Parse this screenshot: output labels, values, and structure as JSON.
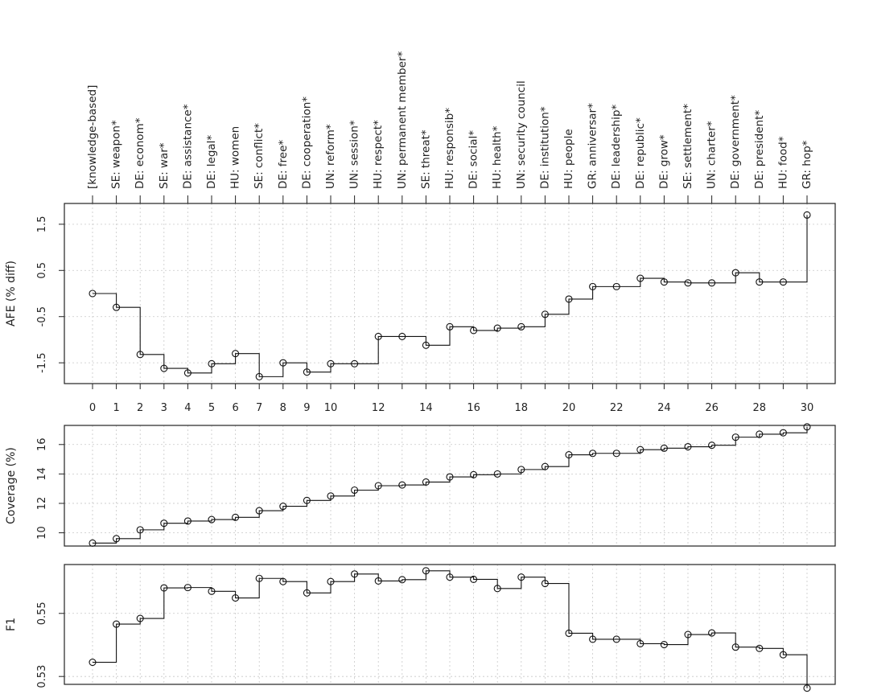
{
  "chart_data": {
    "type": "line",
    "step": true,
    "x": [
      0,
      1,
      2,
      3,
      4,
      5,
      6,
      7,
      8,
      9,
      10,
      11,
      12,
      13,
      14,
      15,
      16,
      17,
      18,
      19,
      20,
      21,
      22,
      23,
      24,
      25,
      26,
      27,
      28,
      29,
      30
    ],
    "x_tick_labels": [
      "0",
      "1",
      "2",
      "3",
      "4",
      "5",
      "6",
      "7",
      "8",
      "9",
      "10",
      "12",
      "14",
      "16",
      "18",
      "20",
      "22",
      "24",
      "26",
      "28",
      "30"
    ],
    "x_tick_values": [
      0,
      1,
      2,
      3,
      4,
      5,
      6,
      7,
      8,
      9,
      10,
      12,
      14,
      16,
      18,
      20,
      22,
      24,
      26,
      28,
      30
    ],
    "features": [
      "[knowledge-based]",
      "SE: weapon*",
      "DE: econom*",
      "SE: war*",
      "DE: assistance*",
      "DE: legal*",
      "HU: women",
      "SE: conflict*",
      "DE: free*",
      "DE: cooperation*",
      "UN: reform*",
      "UN: session*",
      "HU: respect*",
      "UN: permanent member*",
      "SE: threat*",
      "HU: responsib*",
      "DE: social*",
      "HU: health*",
      "UN: security council",
      "DE: institution*",
      "HU: people",
      "GR: anniversar*",
      "DE: leadership*",
      "DE: republic*",
      "DE: grow*",
      "SE: settlement*",
      "UN: charter*",
      "DE: government*",
      "DE: president*",
      "HU: food*",
      "GR: hop*"
    ],
    "grid": true,
    "panels": [
      {
        "ylabel": "AFE (% diff)",
        "yticks": [
          "-1.5",
          "-0.5",
          "0.5",
          "1.5"
        ],
        "ytick_values": [
          -1.5,
          -0.5,
          0.5,
          1.5
        ],
        "ylim": [
          -1.95,
          1.95
        ],
        "values": [
          0.0,
          -0.3,
          -1.32,
          -1.62,
          -1.72,
          -1.52,
          -1.3,
          -1.8,
          -1.5,
          -1.7,
          -1.52,
          -1.52,
          -0.93,
          -0.93,
          -1.12,
          -0.72,
          -0.8,
          -0.75,
          -0.72,
          -0.45,
          -0.12,
          0.15,
          0.15,
          0.33,
          0.25,
          0.23,
          0.23,
          0.45,
          0.25,
          0.25,
          1.7
        ]
      },
      {
        "ylabel": "Coverage (%)",
        "yticks": [
          "10",
          "12",
          "14",
          "16"
        ],
        "ytick_values": [
          10,
          12,
          14,
          16
        ],
        "ylim": [
          9.1,
          17.3
        ],
        "values": [
          9.3,
          9.6,
          10.2,
          10.65,
          10.8,
          10.9,
          11.05,
          11.5,
          11.8,
          12.2,
          12.5,
          12.9,
          13.2,
          13.25,
          13.45,
          13.8,
          13.95,
          14.0,
          14.3,
          14.5,
          15.3,
          15.4,
          15.4,
          15.65,
          15.75,
          15.85,
          15.95,
          16.5,
          16.7,
          16.8,
          17.2
        ]
      },
      {
        "ylabel": "F1",
        "yticks": [
          "0.53",
          "0.55"
        ],
        "ytick_values": [
          0.53,
          0.55
        ],
        "ylim": [
          0.5275,
          0.5655
        ],
        "values": [
          0.5345,
          0.5466,
          0.5484,
          0.5581,
          0.5582,
          0.557,
          0.5549,
          0.5611,
          0.5601,
          0.5565,
          0.5601,
          0.5625,
          0.5603,
          0.5607,
          0.5635,
          0.5615,
          0.5608,
          0.5579,
          0.5615,
          0.5595,
          0.5437,
          0.5418,
          0.5418,
          0.5404,
          0.5401,
          0.5433,
          0.5438,
          0.5393,
          0.5389,
          0.5369,
          0.5263
        ]
      }
    ]
  }
}
